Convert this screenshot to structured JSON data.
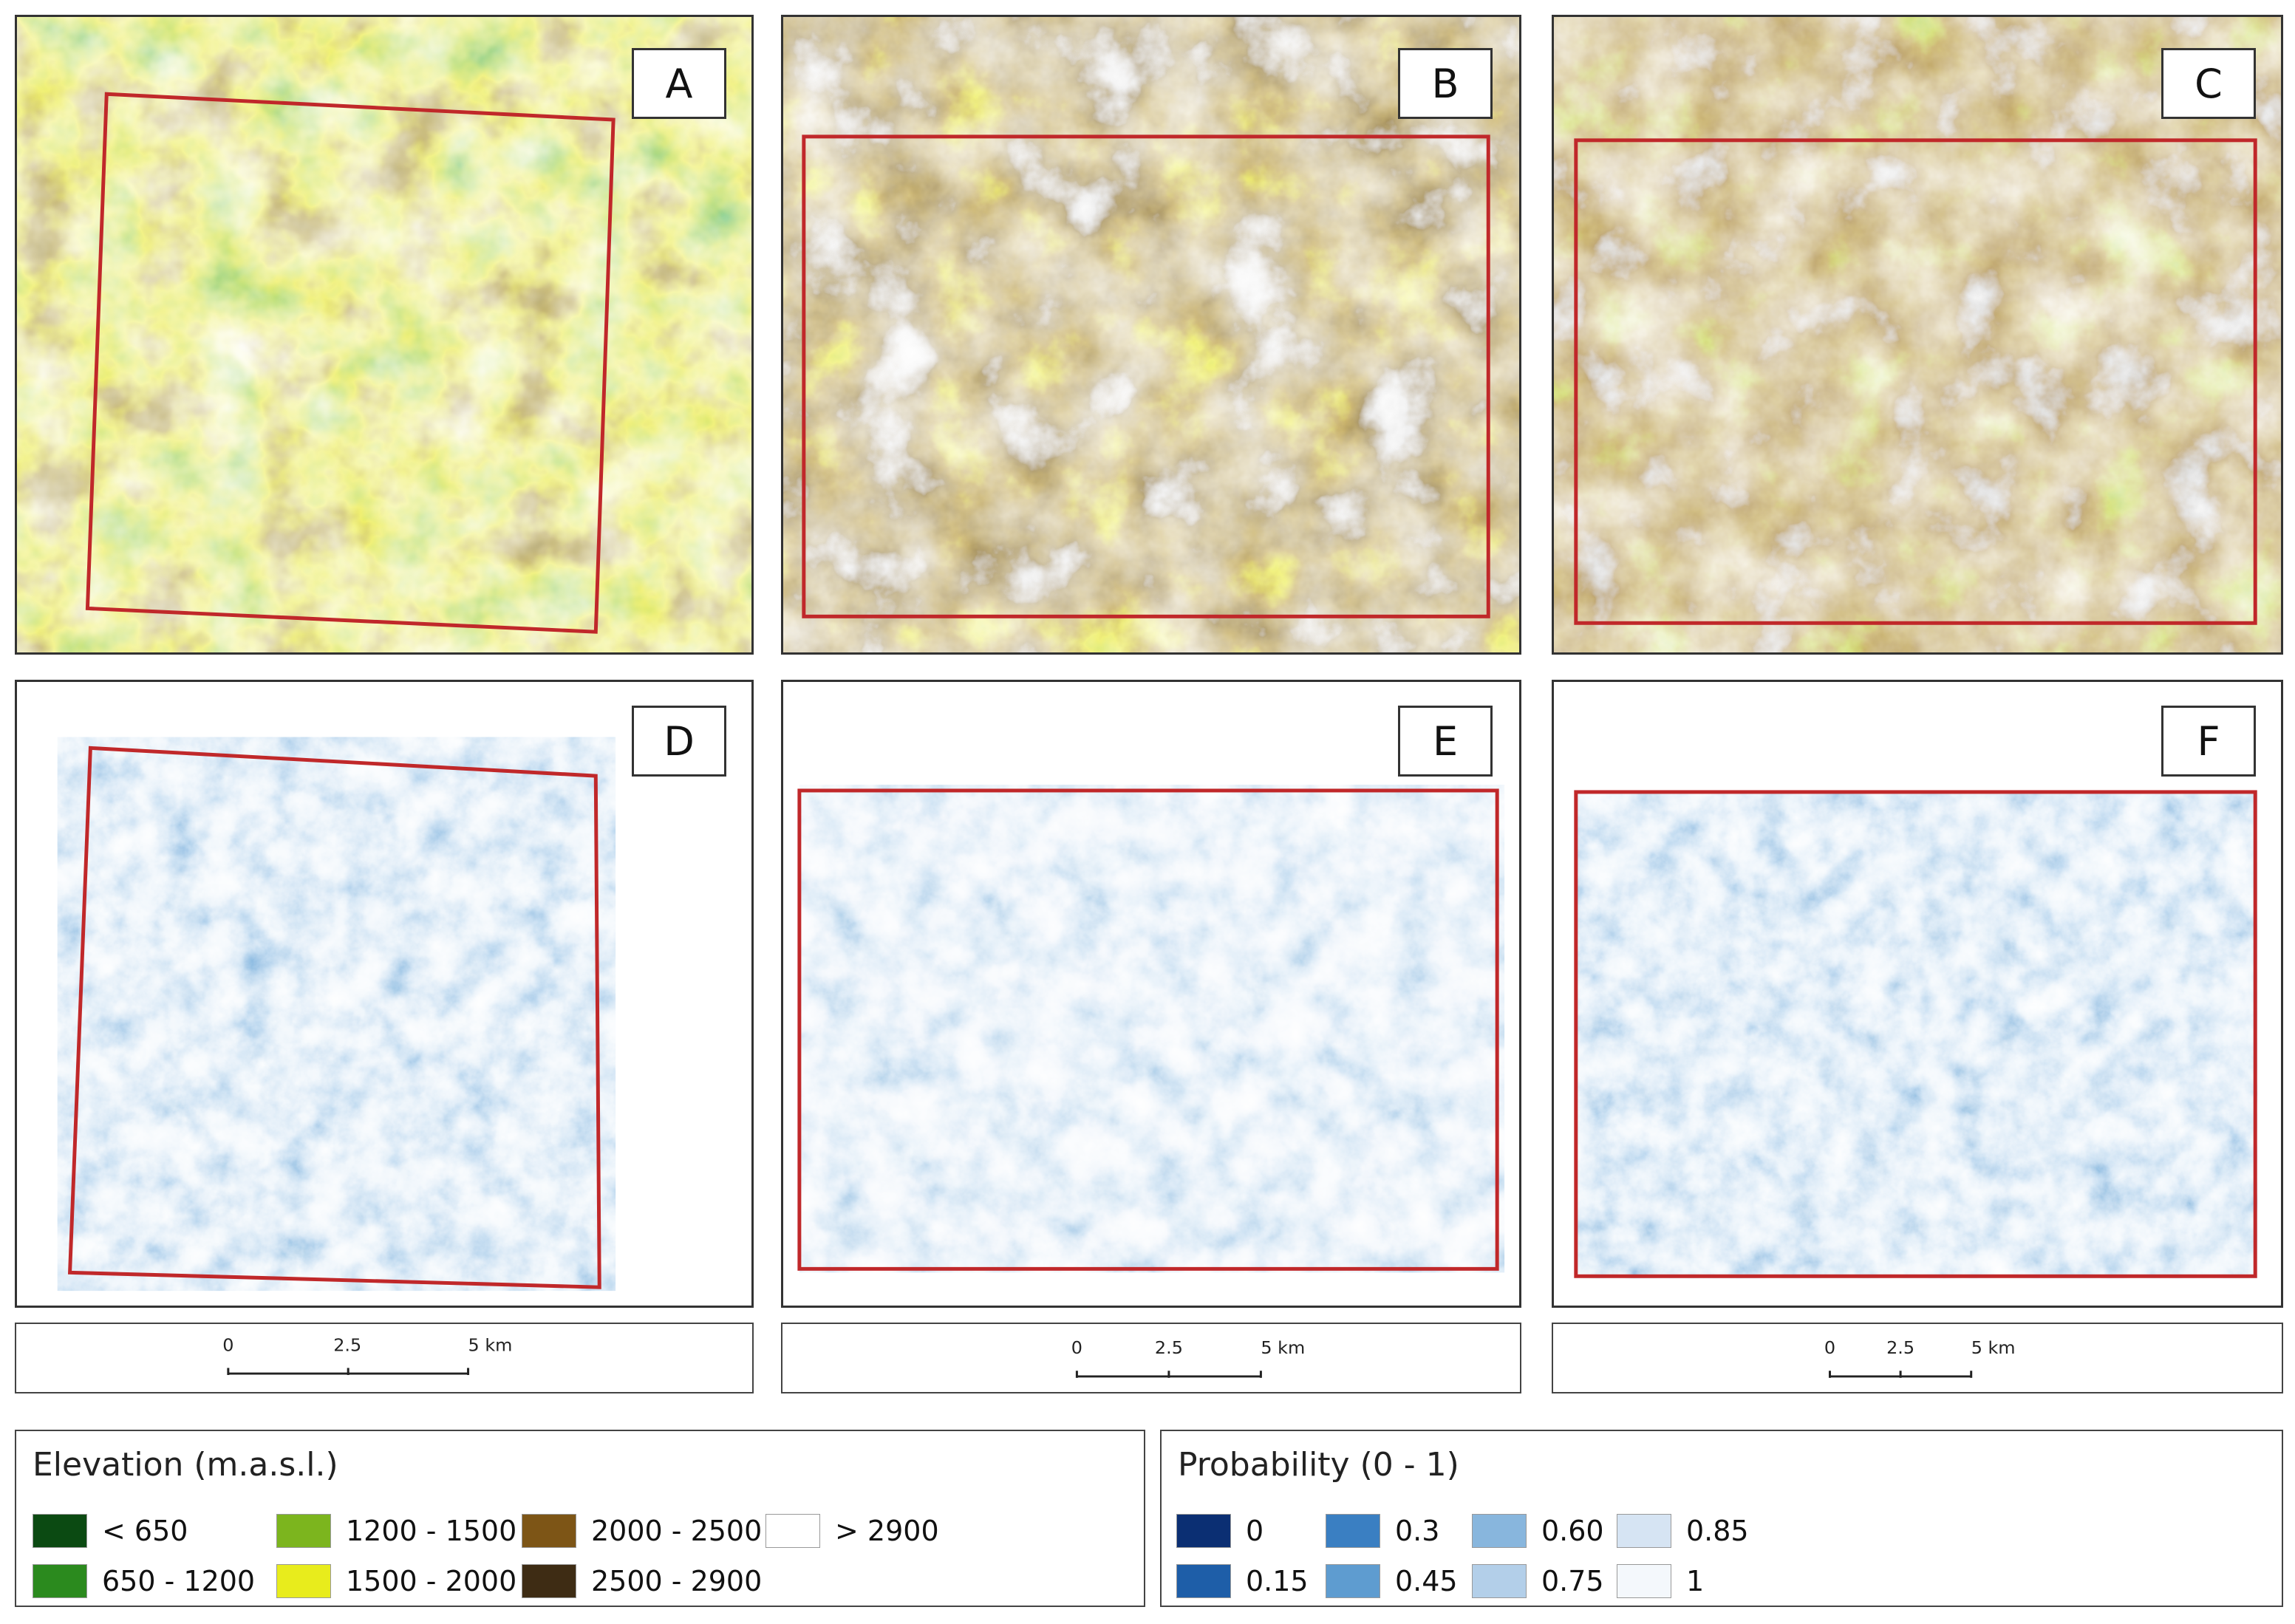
{
  "panels": {
    "A": {
      "label": "A"
    },
    "B": {
      "label": "B"
    },
    "C": {
      "label": "C"
    },
    "D": {
      "label": "D"
    },
    "E": {
      "label": "E"
    },
    "F": {
      "label": "F"
    }
  },
  "scalebar": {
    "ticks": [
      "0",
      "2.5",
      "5 km"
    ]
  },
  "elevation_legend": {
    "title": "Elevation (m.a.s.l.)",
    "items": [
      {
        "label": "< 650",
        "color": "#0b4a12"
      },
      {
        "label": "650 - 1200",
        "color": "#2b8a1e"
      },
      {
        "label": "1200 - 1500",
        "color": "#7cb51e"
      },
      {
        "label": "1500 - 2000",
        "color": "#e8ec1c"
      },
      {
        "label": "2000 - 2500",
        "color": "#7d5516"
      },
      {
        "label": "2500 - 2900",
        "color": "#3e2c14"
      },
      {
        "label": "> 2900",
        "color": "#ffffff"
      }
    ]
  },
  "probability_legend": {
    "title": "Probability (0 - 1)",
    "items": [
      {
        "label": "0",
        "color": "#0b2f73"
      },
      {
        "label": "0.15",
        "color": "#1e5ea8"
      },
      {
        "label": "0.3",
        "color": "#3a7fc2"
      },
      {
        "label": "0.45",
        "color": "#5e9cd0"
      },
      {
        "label": "0.60",
        "color": "#88b6dd"
      },
      {
        "label": "0.75",
        "color": "#b3cfe9"
      },
      {
        "label": "0.85",
        "color": "#d6e4f3"
      },
      {
        "label": "1",
        "color": "#f4f8fc"
      }
    ]
  },
  "colors": {
    "roi_outline": "#c0282a",
    "panel_border": "#333333"
  }
}
